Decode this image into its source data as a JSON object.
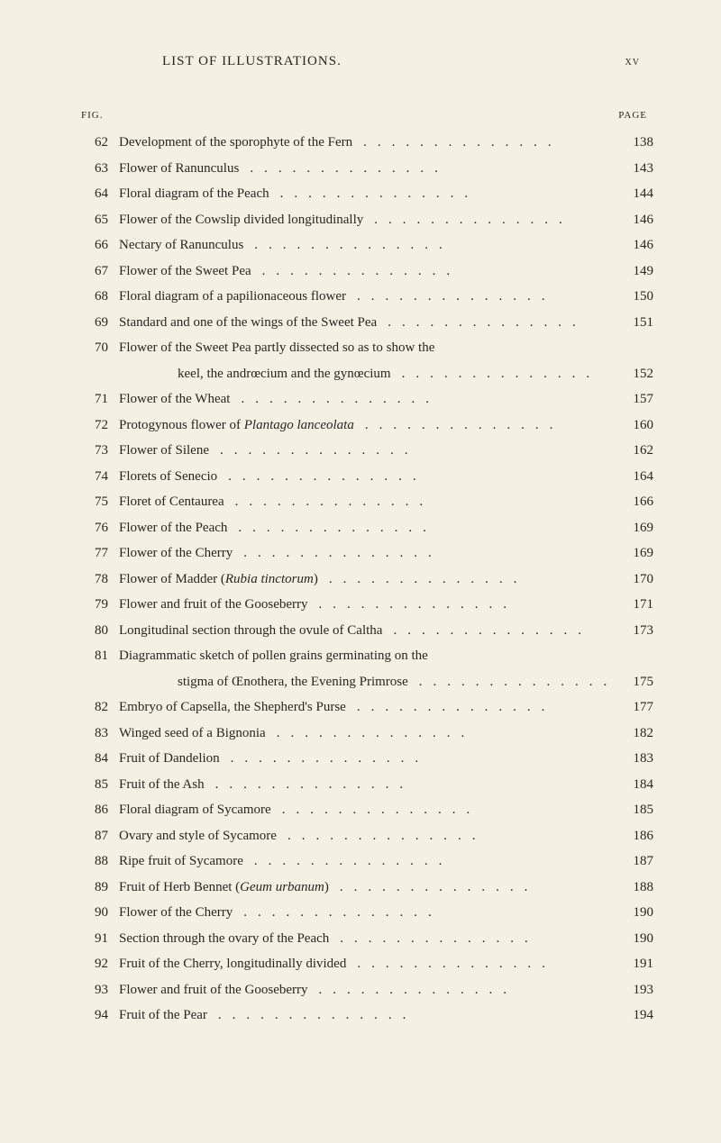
{
  "colors": {
    "background": "#f5f0e4",
    "text": "#2a2520"
  },
  "header": {
    "title": "LIST OF ILLUSTRATIONS.",
    "pageNumber": "XV"
  },
  "columnHeaders": {
    "fig": "FIG.",
    "page": "PAGE"
  },
  "entries": [
    {
      "fig": "62",
      "text": "Development of the sporophyte of the Fern",
      "page": "138"
    },
    {
      "fig": "63",
      "text": "Flower of Ranunculus",
      "page": "143"
    },
    {
      "fig": "64",
      "text": "Floral diagram of the Peach",
      "page": "144"
    },
    {
      "fig": "65",
      "text": "Flower of the Cowslip divided longitudinally",
      "page": "146"
    },
    {
      "fig": "66",
      "text": "Nectary of Ranunculus",
      "page": "146"
    },
    {
      "fig": "67",
      "text": "Flower of the Sweet Pea",
      "page": "149"
    },
    {
      "fig": "68",
      "text": "Floral diagram of a papilionaceous flower",
      "page": "150"
    },
    {
      "fig": "69",
      "text": "Standard and one of the wings of the Sweet Pea",
      "page": "151"
    },
    {
      "fig": "70",
      "text": "Flower of the Sweet Pea partly dissected so as to show the",
      "continuation": "keel, the andrœcium and the gynœcium",
      "page": "152"
    },
    {
      "fig": "71",
      "text": "Flower of the Wheat",
      "page": "157"
    },
    {
      "fig": "72",
      "text": "Protogynous flower of ",
      "italic": "Plantago lanceolata",
      "page": "160"
    },
    {
      "fig": "73",
      "text": "Flower of Silene",
      "page": "162"
    },
    {
      "fig": "74",
      "text": "Florets of Senecio",
      "page": "164"
    },
    {
      "fig": "75",
      "text": "Floret of Centaurea",
      "page": "166"
    },
    {
      "fig": "76",
      "text": "Flower of the Peach",
      "page": "169"
    },
    {
      "fig": "77",
      "text": "Flower of the Cherry",
      "page": "169"
    },
    {
      "fig": "78",
      "text": "Flower of Madder (",
      "italic": "Rubia tinctorum",
      "textAfter": ")",
      "page": "170"
    },
    {
      "fig": "79",
      "text": "Flower and fruit of the Gooseberry",
      "page": "171"
    },
    {
      "fig": "80",
      "text": "Longitudinal section through the ovule of Caltha",
      "page": "173"
    },
    {
      "fig": "81",
      "text": "Diagrammatic sketch of pollen grains germinating on the",
      "continuation": "stigma of Œnothera, the Evening Primrose",
      "page": "175"
    },
    {
      "fig": "82",
      "text": "Embryo of Capsella, the Shepherd's Purse",
      "page": "177"
    },
    {
      "fig": "83",
      "text": "Winged seed of a Bignonia",
      "page": "182"
    },
    {
      "fig": "84",
      "text": "Fruit of Dandelion",
      "page": "183"
    },
    {
      "fig": "85",
      "text": "Fruit of the Ash",
      "page": "184"
    },
    {
      "fig": "86",
      "text": "Floral diagram of Sycamore",
      "page": "185"
    },
    {
      "fig": "87",
      "text": "Ovary and style of Sycamore",
      "page": "186"
    },
    {
      "fig": "88",
      "text": "Ripe fruit of Sycamore",
      "page": "187"
    },
    {
      "fig": "89",
      "text": "Fruit of Herb Bennet (",
      "italic": "Geum urbanum",
      "textAfter": ")",
      "page": "188"
    },
    {
      "fig": "90",
      "text": "Flower of the Cherry",
      "page": "190"
    },
    {
      "fig": "91",
      "text": "Section through the ovary of the Peach",
      "page": "190"
    },
    {
      "fig": "92",
      "text": "Fruit of the Cherry, longitudinally divided",
      "page": "191"
    },
    {
      "fig": "93",
      "text": "Flower and fruit of the Gooseberry",
      "page": "193"
    },
    {
      "fig": "94",
      "text": "Fruit of the Pear",
      "page": "194"
    }
  ],
  "dotLeader": ".............."
}
